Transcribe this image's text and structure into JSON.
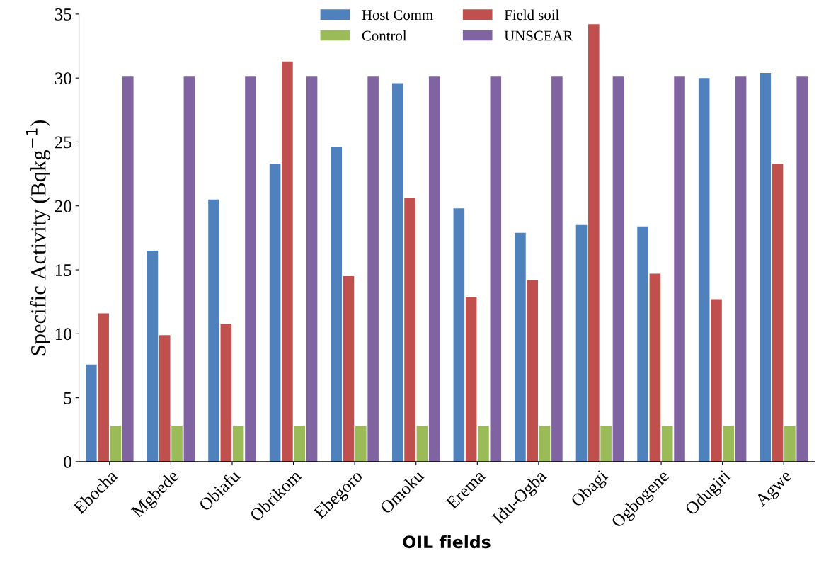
{
  "chart_data": {
    "type": "bar",
    "xlabel": "OIL fields",
    "ylabel": "Specific Activity (Bqkg$^{−1}$)",
    "categories": [
      "Ebocha",
      "Mgbede",
      "Obiafu",
      "Obrikom",
      "Ebegoro",
      "Omoku",
      "Erema",
      "Idu-Ogba",
      "Obagi",
      "Ogbogene",
      "Odugiri",
      "Agwe"
    ],
    "series": [
      {
        "name": "Host Comm",
        "color": "#4f81bd",
        "values": [
          7.6,
          16.5,
          20.5,
          23.3,
          24.6,
          29.6,
          19.8,
          17.9,
          18.5,
          18.4,
          30.0,
          30.4
        ]
      },
      {
        "name": "Field soil",
        "color": "#c0504d",
        "values": [
          11.6,
          9.9,
          10.8,
          31.3,
          14.5,
          20.6,
          12.9,
          14.2,
          34.2,
          14.7,
          12.7,
          23.3
        ]
      },
      {
        "name": "Control",
        "color": "#9bbb59",
        "values": [
          2.8,
          2.8,
          2.8,
          2.8,
          2.8,
          2.8,
          2.8,
          2.8,
          2.8,
          2.8,
          2.8,
          2.8
        ]
      },
      {
        "name": "UNSCEAR",
        "color": "#8064a2",
        "values": [
          30.1,
          30.1,
          30.1,
          30.1,
          30.1,
          30.1,
          30.1,
          30.1,
          30.1,
          30.1,
          30.1,
          30.1
        ]
      }
    ],
    "ylim": [
      0,
      35
    ],
    "yticks": [
      0,
      5,
      10,
      15,
      20,
      25,
      30,
      35
    ],
    "grid": false,
    "legend": "top"
  }
}
